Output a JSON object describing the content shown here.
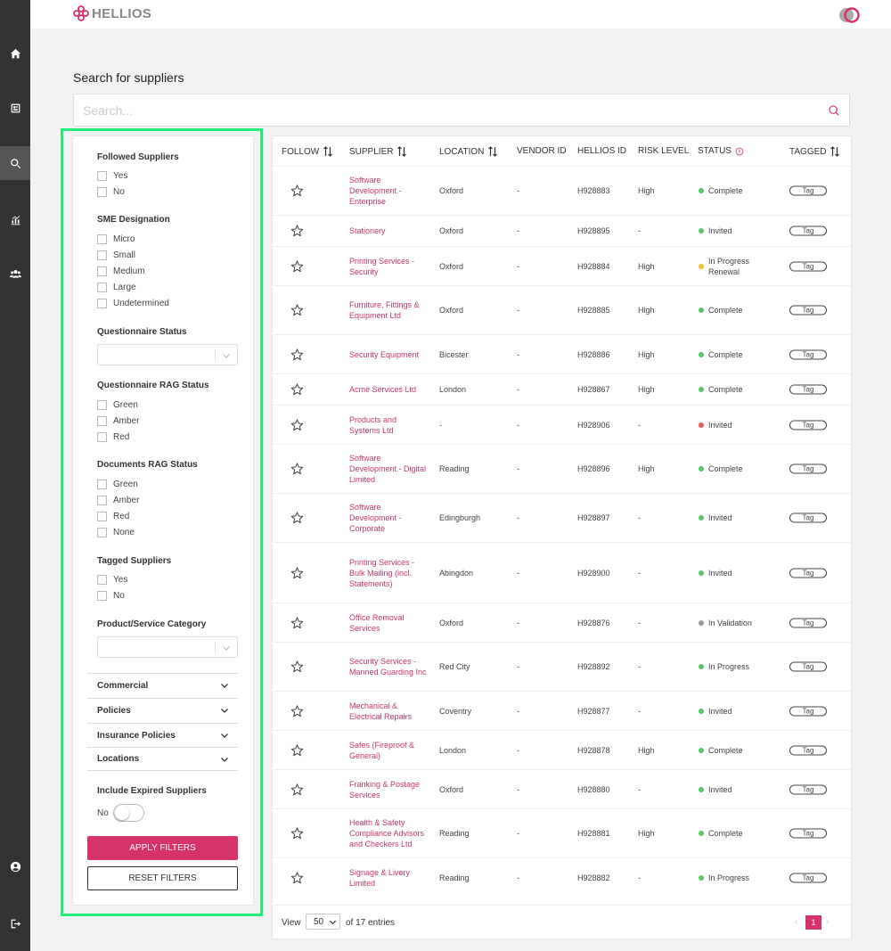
{
  "app": {
    "logo_text": "HELLIOS",
    "brand_color": "#d6336c"
  },
  "sidebar": {
    "items": [
      {
        "icon": "home-icon"
      },
      {
        "icon": "dashboard-icon"
      },
      {
        "icon": "search-icon",
        "active": true
      },
      {
        "icon": "chart-icon"
      },
      {
        "icon": "users-icon"
      },
      {
        "icon": "account-icon"
      },
      {
        "icon": "logout-icon"
      }
    ]
  },
  "page": {
    "title": "Search for suppliers"
  },
  "search": {
    "placeholder": "Search...",
    "value": ""
  },
  "filters": {
    "followed": {
      "title": "Followed Suppliers",
      "options": [
        "Yes",
        "No"
      ]
    },
    "sme": {
      "title": "SME Designation",
      "options": [
        "Micro",
        "Small",
        "Medium",
        "Large",
        "Undetermined"
      ]
    },
    "questionnaire_status": {
      "title": "Questionnaire Status",
      "value": ""
    },
    "questionnaire_rag": {
      "title": "Questionnaire RAG Status",
      "options": [
        "Green",
        "Amber",
        "Red"
      ]
    },
    "documents_rag": {
      "title": "Documents RAG Status",
      "options": [
        "Green",
        "Amber",
        "Red",
        "None"
      ]
    },
    "tagged": {
      "title": "Tagged Suppliers",
      "options": [
        "Yes",
        "No"
      ]
    },
    "category": {
      "title": "Product/Service Category",
      "value": ""
    },
    "accordions": [
      "Commercial",
      "Policies",
      "Insurance Policies",
      "Locations"
    ],
    "expired": {
      "title": "Include Expired Suppliers",
      "toggle_label": "No",
      "on": false
    },
    "apply_label": "APPLY FILTERS",
    "reset_label": "RESET FILTERS"
  },
  "table": {
    "headers": {
      "follow": "FOLLOW",
      "supplier": "SUPPLIER",
      "location": "LOCATION",
      "vendor_id": "VENDOR ID",
      "hellios_id": "HELLIOS ID",
      "risk": "RISK LEVEL",
      "status": "STATUS",
      "tagged": "TAGGED"
    },
    "tag_label": "Tag",
    "status_colors": {
      "Complete": "#5cc46a",
      "Invited": "#5cc46a",
      "In Progress Renewal": "#f2c230",
      "Invited-red": "#e85a5a",
      "In Validation": "#999999",
      "In Progress": "#5cc46a"
    },
    "rows": [
      {
        "supplier": "Software Development - Enterprise",
        "location": "Oxford",
        "vendor": "-",
        "id": "H928883",
        "risk": "High",
        "status": "Complete",
        "dot": "#5cc46a"
      },
      {
        "supplier": "Stationery",
        "location": "Oxford",
        "vendor": "-",
        "id": "H928895",
        "risk": "-",
        "status": "Invited",
        "dot": "#5cc46a"
      },
      {
        "supplier": "Printing Services - Security",
        "location": "Oxford",
        "vendor": "-",
        "id": "H928884",
        "risk": "High",
        "status": "In Progress Renewal",
        "dot": "#f2c230"
      },
      {
        "supplier": "Furniture, Fittings & Equipment Ltd",
        "location": "Oxford",
        "vendor": "-",
        "id": "H928885",
        "risk": "High",
        "status": "Complete",
        "dot": "#5cc46a"
      },
      {
        "supplier": "Security Equipment",
        "location": "Bicester",
        "vendor": "-",
        "id": "H928886",
        "risk": "High",
        "status": "Complete",
        "dot": "#5cc46a"
      },
      {
        "supplier": "Acme Services Ltd",
        "location": "London",
        "vendor": "-",
        "id": "H928867",
        "risk": "High",
        "status": "Complete",
        "dot": "#5cc46a"
      },
      {
        "supplier": "Products and Systems Ltd",
        "location": "-",
        "vendor": "-",
        "id": "H928906",
        "risk": "-",
        "status": "Invited",
        "dot": "#e85a5a"
      },
      {
        "supplier": "Software Development - Digital Limited",
        "location": "Reading",
        "vendor": "-",
        "id": "H928896",
        "risk": "High",
        "status": "Complete",
        "dot": "#5cc46a"
      },
      {
        "supplier": "Software Development - Corporate",
        "location": "Edingburgh",
        "vendor": "-",
        "id": "H928897",
        "risk": "-",
        "status": "Invited",
        "dot": "#5cc46a"
      },
      {
        "supplier": "Printing Services - Bulk Mailing (incl. Statements)",
        "location": "Abingdon",
        "vendor": "-",
        "id": "H928900",
        "risk": "-",
        "status": "Invited",
        "dot": "#5cc46a"
      },
      {
        "supplier": "Office Removal Services",
        "location": "Oxford",
        "vendor": "-",
        "id": "H928876",
        "risk": "-",
        "status": "In Validation",
        "dot": "#999999"
      },
      {
        "supplier": "Security Services - Manned Guarding Inc",
        "location": "Red City",
        "vendor": "-",
        "id": "H928892",
        "risk": "-",
        "status": "In Progress",
        "dot": "#5cc46a"
      },
      {
        "supplier": "Mechanical & Electrical Repairs",
        "location": "Coventry",
        "vendor": "-",
        "id": "H928877",
        "risk": "-",
        "status": "Invited",
        "dot": "#5cc46a"
      },
      {
        "supplier": "Safes (Fireproof & General)",
        "location": "London",
        "vendor": "-",
        "id": "H928878",
        "risk": "High",
        "status": "Complete",
        "dot": "#5cc46a"
      },
      {
        "supplier": "Franking & Postage Services",
        "location": "Oxford",
        "vendor": "-",
        "id": "H928880",
        "risk": "-",
        "status": "Invited",
        "dot": "#5cc46a"
      },
      {
        "supplier": "Health & Safety Compliance Advisors and Checkers Ltd",
        "location": "Reading",
        "vendor": "-",
        "id": "H928881",
        "risk": "High",
        "status": "Complete",
        "dot": "#5cc46a"
      },
      {
        "supplier": "Signage & Livery Limited",
        "location": "Reading",
        "vendor": "-",
        "id": "H928882",
        "risk": "-",
        "status": "In Progress",
        "dot": "#5cc46a"
      }
    ]
  },
  "pagination": {
    "view_label": "View",
    "page_size": "50",
    "entries_text": "of 17 entries",
    "current_page": "1",
    "prev": "‹",
    "next": "›"
  }
}
